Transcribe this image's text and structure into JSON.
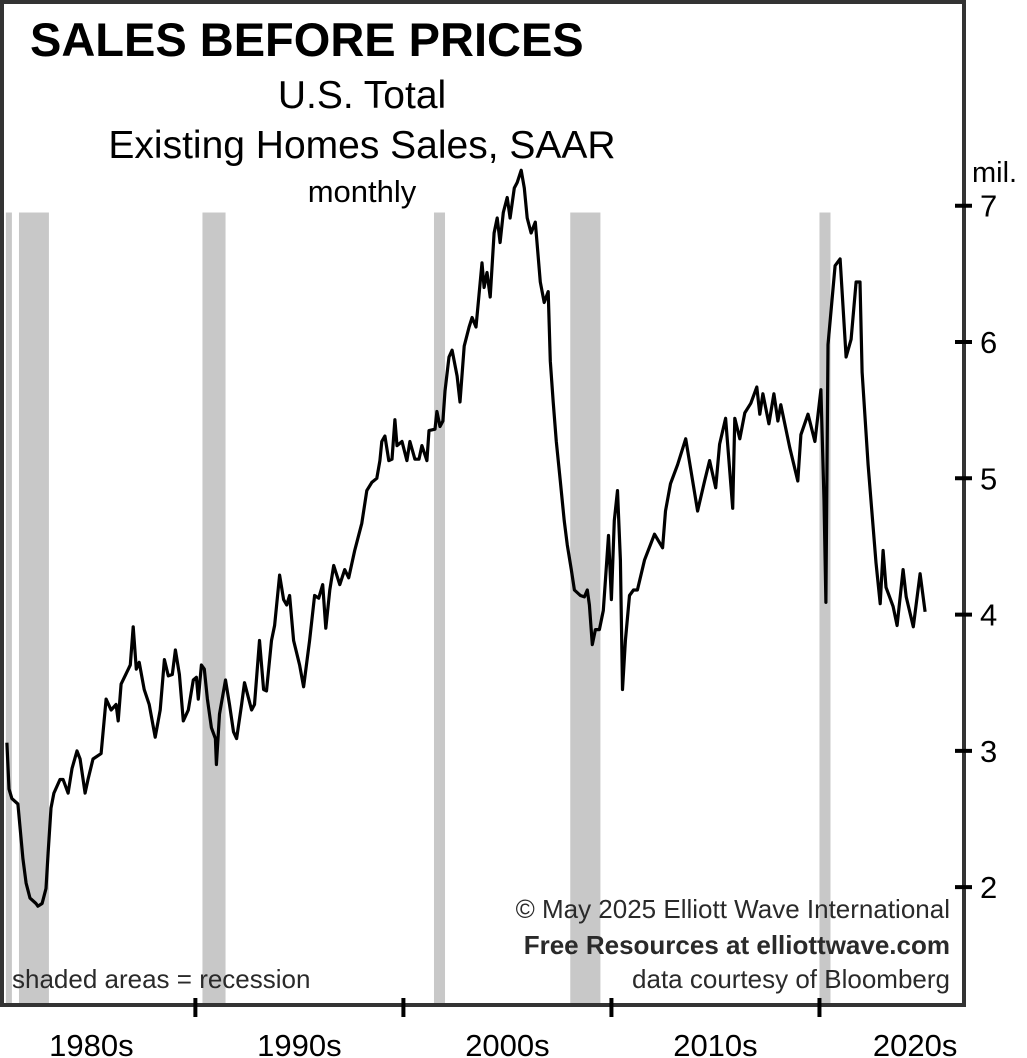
{
  "chart_data": {
    "type": "line",
    "title": "SALES BEFORE PRICES",
    "subtitle_lines": [
      "U.S. Total",
      "Existing Homes Sales, SAAR",
      "monthly"
    ],
    "ylabel": "mil.",
    "xlabel": "",
    "xlim": [
      1980.8,
      2026.9
    ],
    "ylim": [
      1.15,
      8.48
    ],
    "y_ticks": [
      2,
      3,
      4,
      5,
      6,
      7
    ],
    "y_tick_labels": [
      "2",
      "3",
      "4",
      "5",
      "6",
      "7"
    ],
    "x_ticks": [
      1990,
      2000,
      2010,
      2020
    ],
    "x_tick_labels": [
      "1980s",
      "1990s",
      "2000s",
      "2010s",
      "2020s"
    ],
    "x_tick_label_centers": [
      1985,
      1995,
      2005,
      2015,
      2024.6
    ],
    "grid": false,
    "recession_shading_top": 6.95,
    "recessions": [
      [
        1980.89,
        1981.18
      ],
      [
        1981.52,
        1982.96
      ],
      [
        1990.34,
        1991.45
      ],
      [
        2001.47,
        2002.0
      ],
      [
        2008.02,
        2009.47
      ],
      [
        2020.0,
        2020.53
      ]
    ],
    "series": [
      {
        "name": "Existing Home Sales, SAAR (mil.)",
        "color": "#000000",
        "points": [
          [
            1980.94,
            3.06
          ],
          [
            1981.04,
            2.72
          ],
          [
            1981.18,
            2.65
          ],
          [
            1981.47,
            2.61
          ],
          [
            1981.71,
            2.21
          ],
          [
            1981.86,
            2.03
          ],
          [
            1982.05,
            1.92
          ],
          [
            1982.34,
            1.88
          ],
          [
            1982.43,
            1.86
          ],
          [
            1982.63,
            1.88
          ],
          [
            1982.82,
            1.99
          ],
          [
            1982.92,
            2.25
          ],
          [
            1983.06,
            2.58
          ],
          [
            1983.2,
            2.69
          ],
          [
            1983.49,
            2.79
          ],
          [
            1983.64,
            2.79
          ],
          [
            1983.88,
            2.69
          ],
          [
            1984.07,
            2.87
          ],
          [
            1984.31,
            3.0
          ],
          [
            1984.46,
            2.94
          ],
          [
            1984.7,
            2.69
          ],
          [
            1984.84,
            2.79
          ],
          [
            1985.08,
            2.94
          ],
          [
            1985.47,
            2.98
          ],
          [
            1985.71,
            3.38
          ],
          [
            1985.95,
            3.3
          ],
          [
            1986.19,
            3.34
          ],
          [
            1986.29,
            3.22
          ],
          [
            1986.43,
            3.49
          ],
          [
            1986.87,
            3.63
          ],
          [
            1987.01,
            3.91
          ],
          [
            1987.16,
            3.6
          ],
          [
            1987.3,
            3.65
          ],
          [
            1987.54,
            3.45
          ],
          [
            1987.78,
            3.34
          ],
          [
            1988.07,
            3.1
          ],
          [
            1988.31,
            3.3
          ],
          [
            1988.51,
            3.67
          ],
          [
            1988.7,
            3.55
          ],
          [
            1988.89,
            3.56
          ],
          [
            1989.04,
            3.74
          ],
          [
            1989.23,
            3.56
          ],
          [
            1989.42,
            3.22
          ],
          [
            1989.66,
            3.3
          ],
          [
            1989.9,
            3.52
          ],
          [
            1990.05,
            3.54
          ],
          [
            1990.14,
            3.38
          ],
          [
            1990.29,
            3.63
          ],
          [
            1990.43,
            3.6
          ],
          [
            1990.58,
            3.38
          ],
          [
            1990.77,
            3.17
          ],
          [
            1990.96,
            3.09
          ],
          [
            1991.01,
            2.9
          ],
          [
            1991.16,
            3.27
          ],
          [
            1991.45,
            3.52
          ],
          [
            1991.64,
            3.34
          ],
          [
            1991.83,
            3.14
          ],
          [
            1991.98,
            3.09
          ],
          [
            1992.22,
            3.34
          ],
          [
            1992.36,
            3.5
          ],
          [
            1992.7,
            3.3
          ],
          [
            1992.84,
            3.34
          ],
          [
            1993.08,
            3.81
          ],
          [
            1993.28,
            3.45
          ],
          [
            1993.42,
            3.44
          ],
          [
            1993.66,
            3.81
          ],
          [
            1993.81,
            3.92
          ],
          [
            1994.05,
            4.29
          ],
          [
            1994.24,
            4.11
          ],
          [
            1994.39,
            4.07
          ],
          [
            1994.53,
            4.14
          ],
          [
            1994.72,
            3.81
          ],
          [
            1995.01,
            3.63
          ],
          [
            1995.2,
            3.47
          ],
          [
            1995.49,
            3.81
          ],
          [
            1995.73,
            4.14
          ],
          [
            1995.93,
            4.12
          ],
          [
            1996.12,
            4.22
          ],
          [
            1996.27,
            3.9
          ],
          [
            1996.46,
            4.18
          ],
          [
            1996.65,
            4.36
          ],
          [
            1996.94,
            4.22
          ],
          [
            1997.18,
            4.33
          ],
          [
            1997.37,
            4.27
          ],
          [
            1997.66,
            4.47
          ],
          [
            1998.0,
            4.67
          ],
          [
            1998.24,
            4.91
          ],
          [
            1998.48,
            4.97
          ],
          [
            1998.72,
            5.0
          ],
          [
            1998.87,
            5.13
          ],
          [
            1998.96,
            5.27
          ],
          [
            1999.11,
            5.31
          ],
          [
            1999.3,
            5.13
          ],
          [
            1999.45,
            5.14
          ],
          [
            1999.59,
            5.43
          ],
          [
            1999.69,
            5.24
          ],
          [
            1999.93,
            5.27
          ],
          [
            2000.17,
            5.13
          ],
          [
            2000.31,
            5.27
          ],
          [
            2000.55,
            5.14
          ],
          [
            2000.75,
            5.14
          ],
          [
            2000.89,
            5.24
          ],
          [
            2001.13,
            5.13
          ],
          [
            2001.23,
            5.35
          ],
          [
            2001.52,
            5.36
          ],
          [
            2001.61,
            5.49
          ],
          [
            2001.76,
            5.38
          ],
          [
            2001.9,
            5.42
          ],
          [
            2002.0,
            5.64
          ],
          [
            2002.19,
            5.89
          ],
          [
            2002.34,
            5.94
          ],
          [
            2002.58,
            5.75
          ],
          [
            2002.72,
            5.56
          ],
          [
            2002.92,
            5.97
          ],
          [
            2003.16,
            6.11
          ],
          [
            2003.3,
            6.18
          ],
          [
            2003.49,
            6.11
          ],
          [
            2003.78,
            6.58
          ],
          [
            2003.88,
            6.4
          ],
          [
            2004.02,
            6.51
          ],
          [
            2004.17,
            6.33
          ],
          [
            2004.36,
            6.8
          ],
          [
            2004.51,
            6.91
          ],
          [
            2004.65,
            6.73
          ],
          [
            2004.8,
            6.95
          ],
          [
            2004.99,
            7.06
          ],
          [
            2005.13,
            6.91
          ],
          [
            2005.33,
            7.13
          ],
          [
            2005.47,
            7.17
          ],
          [
            2005.66,
            7.26
          ],
          [
            2005.81,
            7.13
          ],
          [
            2005.95,
            6.91
          ],
          [
            2006.14,
            6.8
          ],
          [
            2006.34,
            6.88
          ],
          [
            2006.58,
            6.44
          ],
          [
            2006.77,
            6.29
          ],
          [
            2006.96,
            6.37
          ],
          [
            2007.06,
            5.86
          ],
          [
            2007.2,
            5.56
          ],
          [
            2007.35,
            5.27
          ],
          [
            2007.54,
            4.98
          ],
          [
            2007.73,
            4.69
          ],
          [
            2007.88,
            4.51
          ],
          [
            2008.07,
            4.33
          ],
          [
            2008.22,
            4.18
          ],
          [
            2008.51,
            4.14
          ],
          [
            2008.7,
            4.13
          ],
          [
            2008.84,
            4.18
          ],
          [
            2008.94,
            4.07
          ],
          [
            2009.08,
            3.78
          ],
          [
            2009.23,
            3.89
          ],
          [
            2009.42,
            3.89
          ],
          [
            2009.61,
            4.03
          ],
          [
            2009.71,
            4.25
          ],
          [
            2009.86,
            4.58
          ],
          [
            2010.0,
            4.11
          ],
          [
            2010.14,
            4.69
          ],
          [
            2010.29,
            4.91
          ],
          [
            2010.43,
            4.4
          ],
          [
            2010.53,
            3.45
          ],
          [
            2010.67,
            3.81
          ],
          [
            2010.87,
            4.14
          ],
          [
            2011.06,
            4.18
          ],
          [
            2011.25,
            4.18
          ],
          [
            2011.59,
            4.4
          ],
          [
            2012.07,
            4.59
          ],
          [
            2012.46,
            4.49
          ],
          [
            2012.6,
            4.76
          ],
          [
            2012.84,
            4.96
          ],
          [
            2013.18,
            5.1
          ],
          [
            2013.57,
            5.29
          ],
          [
            2014.14,
            4.76
          ],
          [
            2014.48,
            4.98
          ],
          [
            2014.72,
            5.13
          ],
          [
            2015.01,
            4.93
          ],
          [
            2015.2,
            5.25
          ],
          [
            2015.49,
            5.44
          ],
          [
            2015.83,
            4.78
          ],
          [
            2015.93,
            5.44
          ],
          [
            2016.17,
            5.29
          ],
          [
            2016.41,
            5.48
          ],
          [
            2016.7,
            5.55
          ],
          [
            2016.99,
            5.67
          ],
          [
            2017.13,
            5.47
          ],
          [
            2017.28,
            5.62
          ],
          [
            2017.57,
            5.4
          ],
          [
            2017.81,
            5.62
          ],
          [
            2018.0,
            5.42
          ],
          [
            2018.14,
            5.54
          ],
          [
            2018.58,
            5.22
          ],
          [
            2018.96,
            4.98
          ],
          [
            2019.11,
            5.32
          ],
          [
            2019.45,
            5.47
          ],
          [
            2019.78,
            5.27
          ],
          [
            2020.07,
            5.65
          ],
          [
            2020.22,
            4.84
          ],
          [
            2020.31,
            4.09
          ],
          [
            2020.41,
            5.98
          ],
          [
            2020.75,
            6.56
          ],
          [
            2020.99,
            6.61
          ],
          [
            2021.28,
            5.89
          ],
          [
            2021.52,
            6.02
          ],
          [
            2021.76,
            6.44
          ],
          [
            2021.95,
            6.44
          ],
          [
            2022.05,
            5.78
          ],
          [
            2022.34,
            5.1
          ],
          [
            2022.72,
            4.38
          ],
          [
            2022.92,
            4.08
          ],
          [
            2023.06,
            4.47
          ],
          [
            2023.2,
            4.2
          ],
          [
            2023.54,
            4.06
          ],
          [
            2023.73,
            3.92
          ],
          [
            2024.02,
            4.33
          ],
          [
            2024.17,
            4.13
          ],
          [
            2024.51,
            3.91
          ],
          [
            2024.84,
            4.3
          ],
          [
            2025.08,
            4.02
          ]
        ]
      }
    ],
    "annotations": {
      "legend_note": "shaded areas = recession",
      "copyright": "© May 2025  Elliott Wave International",
      "promo": "Free Resources at elliottwave.com",
      "source": "data courtesy of Bloomberg"
    },
    "colors": {
      "line": "#000000",
      "recession": "#c8c8c8",
      "frame": "#333333"
    }
  }
}
